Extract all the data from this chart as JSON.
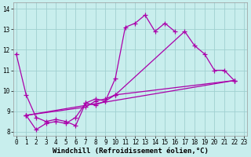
{
  "xlabel": "Windchill (Refroidissement éolien,°C)",
  "background_color": "#c8eeed",
  "grid_color": "#a0d0d0",
  "line_color": "#aa00aa",
  "xlim": [
    -0.3,
    23.3
  ],
  "ylim": [
    7.8,
    14.3
  ],
  "xticks": [
    0,
    1,
    2,
    3,
    4,
    5,
    6,
    7,
    8,
    9,
    10,
    11,
    12,
    13,
    14,
    15,
    16,
    17,
    18,
    19,
    20,
    21,
    22,
    23
  ],
  "yticks": [
    8,
    9,
    10,
    11,
    12,
    13,
    14
  ],
  "lines": [
    {
      "x": [
        0,
        1,
        2,
        3,
        4,
        5,
        6,
        7,
        8,
        9,
        10,
        11,
        12,
        13,
        14,
        15,
        16
      ],
      "y": [
        11.8,
        9.8,
        8.7,
        8.5,
        8.6,
        8.5,
        8.3,
        9.4,
        9.6,
        9.5,
        10.6,
        13.1,
        13.3,
        13.7,
        12.9,
        13.3,
        12.9
      ]
    },
    {
      "x": [
        1,
        2,
        3,
        4,
        5,
        6,
        7,
        8,
        9,
        10,
        17,
        18,
        19,
        20,
        21,
        22
      ],
      "y": [
        8.8,
        8.1,
        8.4,
        8.5,
        8.4,
        8.7,
        9.4,
        9.3,
        9.5,
        9.8,
        12.9,
        12.2,
        11.8,
        11.0,
        11.0,
        10.5
      ]
    },
    {
      "x": [
        1,
        7,
        8,
        9,
        10,
        22
      ],
      "y": [
        8.8,
        9.2,
        9.5,
        9.6,
        9.8,
        10.5
      ]
    },
    {
      "x": [
        1,
        22
      ],
      "y": [
        8.8,
        10.5
      ]
    }
  ],
  "markersize": 4,
  "linewidth": 0.9,
  "xlabel_fontsize": 6.5,
  "tick_fontsize": 5.5
}
